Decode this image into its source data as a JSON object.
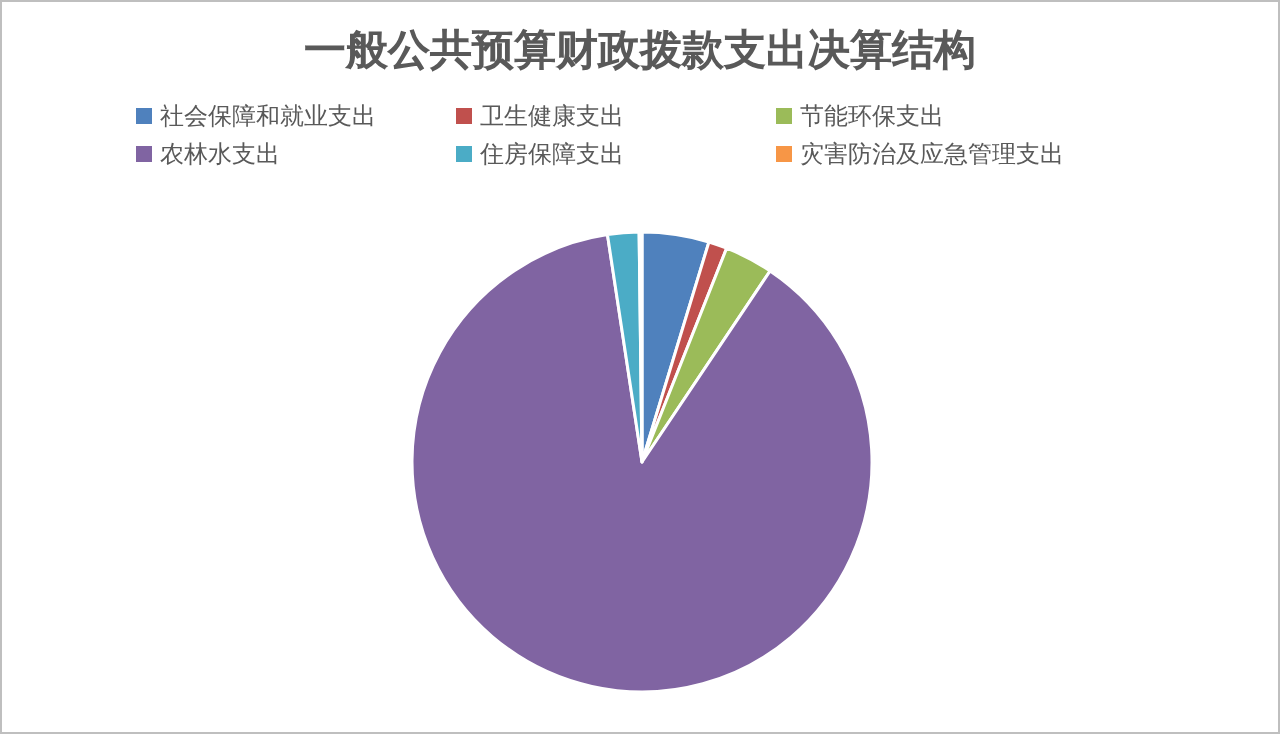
{
  "chart_data": {
    "type": "pie",
    "title": "一般公共预算财政拨款支出决算结构",
    "categories": [
      "社会保障和就业支出",
      "卫生健康支出",
      "节能环保支出",
      "农林水支出",
      "住房保障支出",
      "灾害防治及应急管理支出"
    ],
    "values": [
      4.7,
      1.3,
      3.4,
      88.2,
      2.2,
      0.2
    ],
    "colors": [
      "#4f81bd",
      "#c0504d",
      "#9bbb59",
      "#8064a2",
      "#4bacc6",
      "#f79646"
    ],
    "legend": "top"
  }
}
